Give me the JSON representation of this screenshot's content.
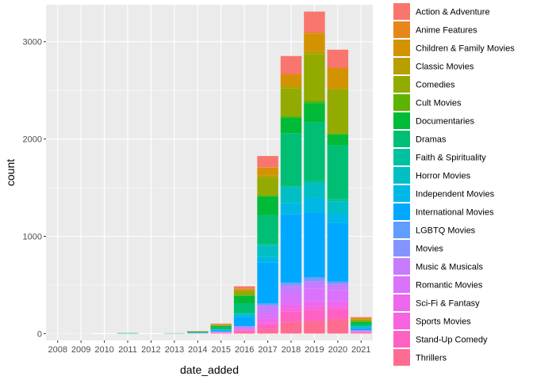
{
  "chart_data": {
    "type": "bar",
    "stacked": true,
    "xlabel": "date_added",
    "ylabel": "count",
    "ylim": [
      -70,
      3380
    ],
    "yticks": [
      0,
      1000,
      2000,
      3000
    ],
    "panel_background": "#ebebeb",
    "grid": true,
    "legend_position": "right",
    "categories": [
      "2008",
      "2009",
      "2010",
      "2011",
      "2012",
      "2013",
      "2014",
      "2015",
      "2016",
      "2017",
      "2018",
      "2019",
      "2020",
      "2021"
    ],
    "series": [
      {
        "name": "Action & Adventure",
        "color": "#F8766D",
        "values": [
          0,
          0,
          0,
          0,
          0,
          0,
          2,
          8,
          25,
          115,
          185,
          215,
          185,
          10
        ]
      },
      {
        "name": "Anime Features",
        "color": "#E7861B",
        "values": [
          0,
          0,
          0,
          0,
          0,
          0,
          0,
          1,
          3,
          5,
          8,
          10,
          8,
          1
        ]
      },
      {
        "name": "Children & Family Movies",
        "color": "#D39200",
        "values": [
          0,
          0,
          0,
          0,
          0,
          0,
          1,
          4,
          15,
          80,
          110,
          180,
          200,
          15
        ]
      },
      {
        "name": "Classic Movies",
        "color": "#B79F00",
        "values": [
          0,
          0,
          0,
          0,
          0,
          0,
          0,
          1,
          5,
          20,
          30,
          35,
          20,
          2
        ]
      },
      {
        "name": "Comedies",
        "color": "#93AA00",
        "values": [
          0,
          0,
          0,
          0,
          0,
          0,
          2,
          10,
          45,
          180,
          280,
          475,
          445,
          20
        ]
      },
      {
        "name": "Cult Movies",
        "color": "#5EB300",
        "values": [
          0,
          0,
          0,
          0,
          0,
          0,
          0,
          1,
          4,
          15,
          20,
          25,
          15,
          1
        ]
      },
      {
        "name": "Documentaries",
        "color": "#00BA38",
        "values": [
          0,
          0,
          0,
          1,
          0,
          2,
          5,
          15,
          80,
          190,
          160,
          200,
          110,
          20
        ]
      },
      {
        "name": "Dramas",
        "color": "#00BF74",
        "values": [
          1,
          1,
          0,
          5,
          0,
          2,
          6,
          20,
          100,
          300,
          545,
          600,
          555,
          25
        ]
      },
      {
        "name": "Faith & Spirituality",
        "color": "#00C19F",
        "values": [
          0,
          0,
          0,
          0,
          0,
          0,
          0,
          1,
          3,
          15,
          15,
          25,
          20,
          2
        ]
      },
      {
        "name": "Horror Movies",
        "color": "#00BFC4",
        "values": [
          0,
          0,
          0,
          0,
          0,
          0,
          1,
          3,
          20,
          115,
          160,
          150,
          120,
          10
        ]
      },
      {
        "name": "Independent Movies",
        "color": "#00B8E7",
        "values": [
          0,
          0,
          0,
          0,
          0,
          0,
          1,
          3,
          15,
          60,
          115,
          155,
          105,
          10
        ]
      },
      {
        "name": "International Movies",
        "color": "#00A9FF",
        "values": [
          0,
          0,
          0,
          0,
          0,
          0,
          3,
          15,
          95,
          420,
          700,
          660,
          600,
          20
        ]
      },
      {
        "name": "LGBTQ Movies",
        "color": "#619CFF",
        "values": [
          0,
          0,
          0,
          0,
          0,
          0,
          0,
          1,
          3,
          10,
          15,
          20,
          15,
          1
        ]
      },
      {
        "name": "Movies",
        "color": "#8494FF",
        "values": [
          0,
          0,
          0,
          0,
          0,
          0,
          0,
          1,
          3,
          15,
          20,
          25,
          10,
          1
        ]
      },
      {
        "name": "Music & Musicals",
        "color": "#C77CFF",
        "values": [
          0,
          0,
          0,
          0,
          0,
          0,
          1,
          3,
          10,
          70,
          80,
          70,
          65,
          5
        ]
      },
      {
        "name": "Romantic Movies",
        "color": "#DB72FB",
        "values": [
          0,
          0,
          0,
          0,
          0,
          0,
          1,
          3,
          15,
          60,
          110,
          135,
          115,
          5
        ]
      },
      {
        "name": "Sci-Fi & Fantasy",
        "color": "#ED68ED",
        "values": [
          0,
          0,
          0,
          0,
          0,
          0,
          1,
          3,
          10,
          40,
          45,
          55,
          55,
          5
        ]
      },
      {
        "name": "Sports Movies",
        "color": "#F863DF",
        "values": [
          0,
          0,
          0,
          0,
          0,
          0,
          0,
          2,
          5,
          20,
          30,
          30,
          25,
          2
        ]
      },
      {
        "name": "Stand-Up Comedy",
        "color": "#FF61C3",
        "values": [
          0,
          0,
          0,
          0,
          0,
          0,
          1,
          4,
          15,
          50,
          105,
          115,
          100,
          7
        ]
      },
      {
        "name": "Thrillers",
        "color": "#FF6C91",
        "values": [
          0,
          0,
          0,
          0,
          0,
          0,
          1,
          4,
          15,
          45,
          120,
          130,
          150,
          8
        ]
      }
    ]
  }
}
